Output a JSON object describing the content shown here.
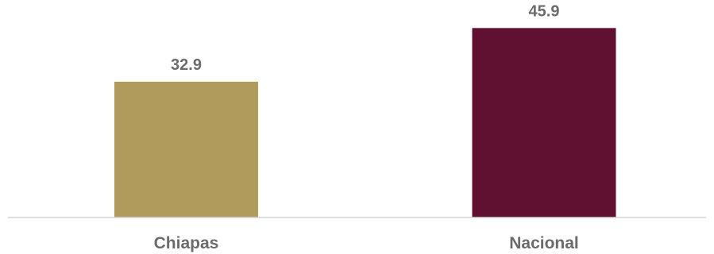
{
  "chart_data": {
    "type": "bar",
    "categories": [
      "Chiapas",
      "Nacional"
    ],
    "values": [
      32.9,
      45.9
    ],
    "value_labels": [
      "32.9",
      "45.9"
    ],
    "colors": [
      "#b09a5c",
      "#601131"
    ],
    "ylim": [
      0,
      50
    ],
    "grid": false,
    "legend": "none"
  }
}
